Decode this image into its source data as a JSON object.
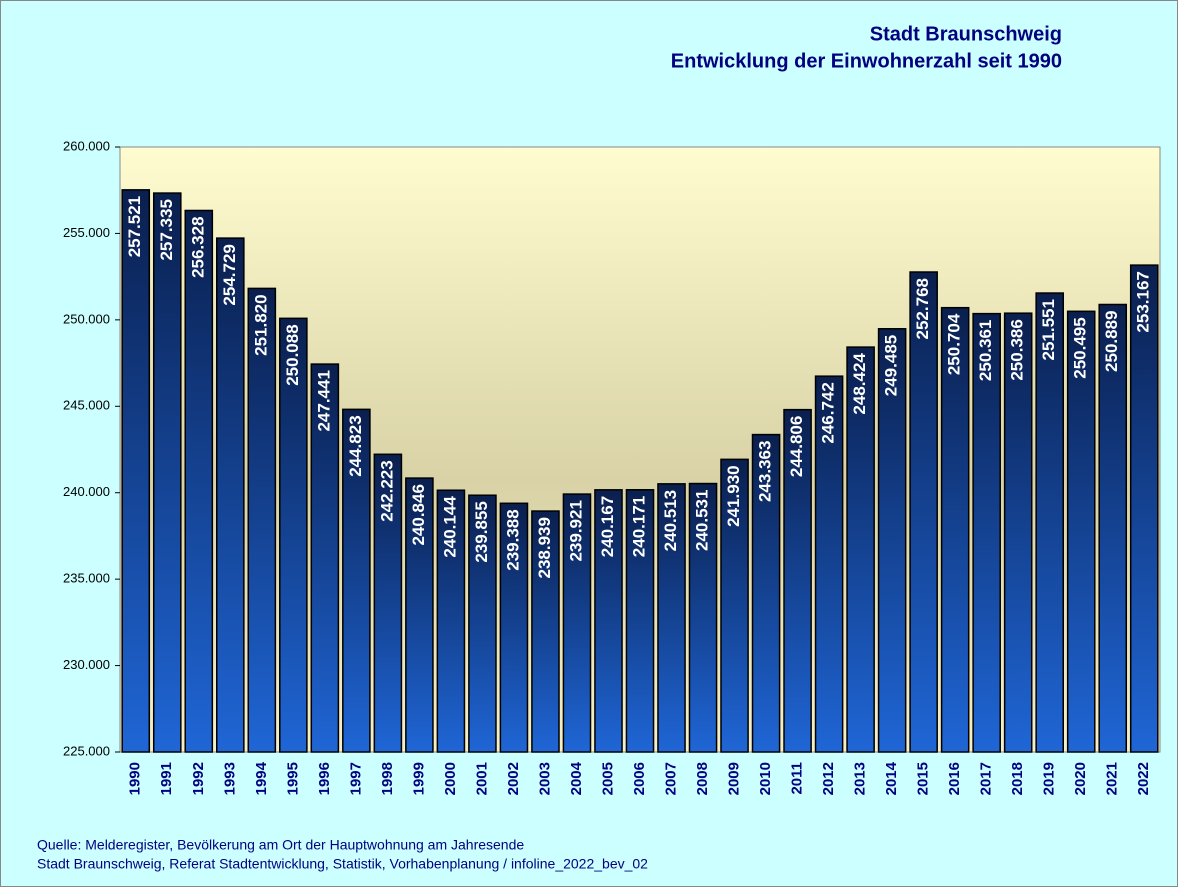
{
  "chart_data": {
    "type": "bar",
    "title": "Stadt Braunschweig",
    "subtitle": "Entwicklung der Einwohnerzahl seit 1990",
    "categories": [
      "1990",
      "1991",
      "1992",
      "1993",
      "1994",
      "1995",
      "1996",
      "1997",
      "1998",
      "1999",
      "2000",
      "2001",
      "2002",
      "2003",
      "2004",
      "2005",
      "2006",
      "2007",
      "2008",
      "2009",
      "2010",
      "2011",
      "2012",
      "2013",
      "2014",
      "2015",
      "2016",
      "2017",
      "2018",
      "2019",
      "2020",
      "2021",
      "2022"
    ],
    "values": [
      257521,
      257335,
      256328,
      254729,
      251820,
      250088,
      247441,
      244823,
      242223,
      240846,
      240144,
      239855,
      239388,
      238939,
      239921,
      240167,
      240171,
      240513,
      240531,
      241930,
      243363,
      244806,
      246742,
      248424,
      249485,
      252768,
      250704,
      250361,
      250386,
      251551,
      250495,
      250889,
      253167
    ],
    "value_labels": [
      "257.521",
      "257.335",
      "256.328",
      "254.729",
      "251.820",
      "250.088",
      "247.441",
      "244.823",
      "242.223",
      "240.846",
      "240.144",
      "239.855",
      "239.388",
      "238.939",
      "239.921",
      "240.167",
      "240.171",
      "240.513",
      "240.531",
      "241.930",
      "243.363",
      "244.806",
      "246.742",
      "248.424",
      "249.485",
      "252.768",
      "250.704",
      "250.361",
      "250.386",
      "251.551",
      "250.495",
      "250.889",
      "253.167"
    ],
    "color": "#1f66d6",
    "ylim": [
      225000,
      260000
    ],
    "yticks": [
      {
        "value": 225000,
        "label": "225.000"
      },
      {
        "value": 230000,
        "label": "230.000"
      },
      {
        "value": 235000,
        "label": "235.000"
      },
      {
        "value": 240000,
        "label": "240.000"
      },
      {
        "value": 245000,
        "label": "245.000"
      },
      {
        "value": 250000,
        "label": "250.000"
      },
      {
        "value": 255000,
        "label": "255.000"
      },
      {
        "value": 260000,
        "label": "260.000"
      }
    ],
    "notes": [
      "Quelle: Melderegister, Bevölkerung am Ort der Hauptwohnung am Jahresende",
      "Stadt Braunschweig, Referat Stadtentwicklung, Statistik, Vorhabenplanung / infoline_2022_bev_02"
    ]
  }
}
